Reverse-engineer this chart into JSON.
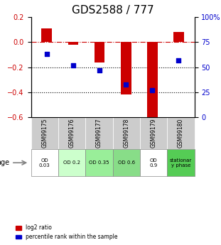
{
  "title": "GDS2588 / 777",
  "samples": [
    "GSM99175",
    "GSM99176",
    "GSM99177",
    "GSM99178",
    "GSM99179",
    "GSM99180"
  ],
  "log2_ratio": [
    0.11,
    -0.02,
    -0.16,
    -0.42,
    -0.6,
    0.08
  ],
  "percentile_rank": [
    0.63,
    0.52,
    0.47,
    0.33,
    0.27,
    0.57
  ],
  "ylim_left": [
    -0.6,
    0.2
  ],
  "ylim_right": [
    0,
    100
  ],
  "bar_color": "#cc0000",
  "dot_color": "#0000cc",
  "hline_color": "#cc0000",
  "hline_style": "-.",
  "dotted_color": "#000000",
  "age_labels": [
    "OD\n0.03",
    "OD 0.2",
    "OD 0.35",
    "OD 0.6",
    "OD\n0.9",
    "stationar\ny phase"
  ],
  "age_bg_colors": [
    "#ffffff",
    "#ccffcc",
    "#99ee99",
    "#88dd88",
    "#ffffff",
    "#55cc55"
  ],
  "gsm_bg_color": "#cccccc",
  "title_fontsize": 11,
  "tick_fontsize": 7,
  "bar_width": 0.4
}
